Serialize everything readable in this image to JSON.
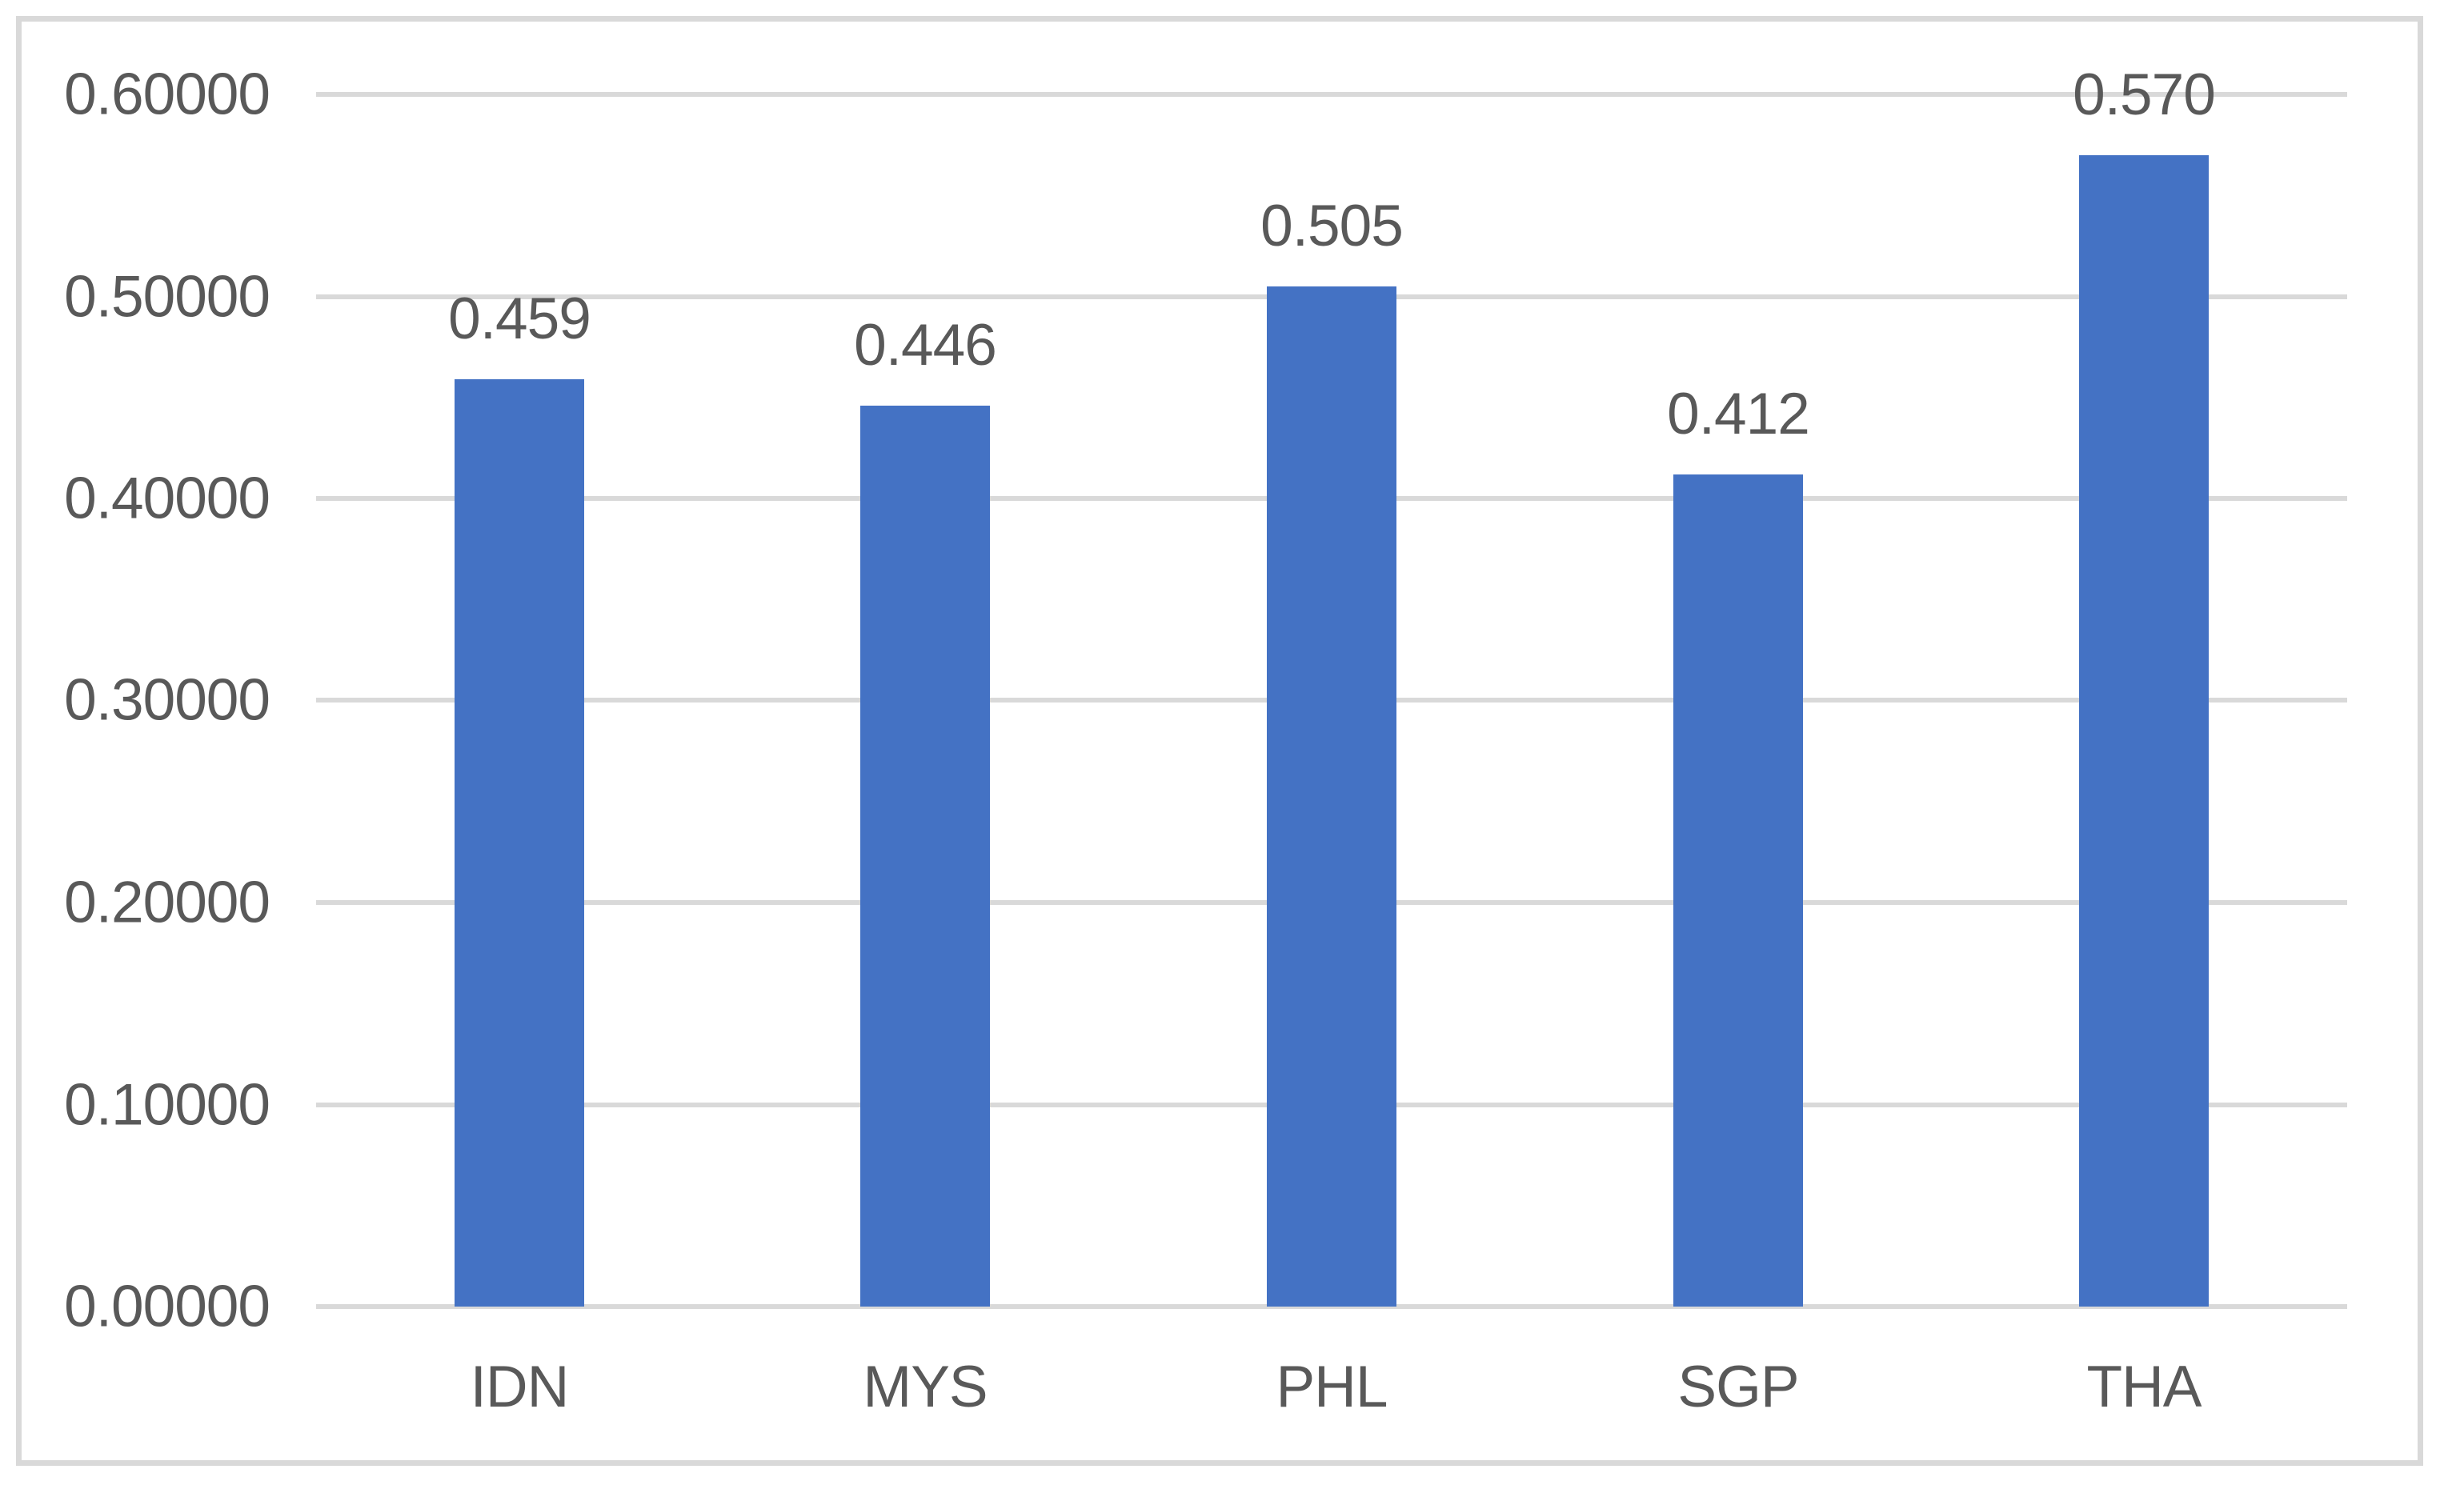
{
  "chart_data": {
    "type": "bar",
    "categories": [
      "IDN",
      "MYS",
      "PHL",
      "SGP",
      "THA"
    ],
    "values": [
      0.459,
      0.446,
      0.505,
      0.412,
      0.57
    ],
    "value_labels": [
      "0.459",
      "0.446",
      "0.505",
      "0.412",
      "0.570"
    ],
    "title": "",
    "xlabel": "",
    "ylabel": "",
    "ylim": [
      0,
      0.6
    ],
    "y_tick_step": 0.1,
    "y_tick_labels": [
      "0.00000",
      "0.10000",
      "0.20000",
      "0.30000",
      "0.40000",
      "0.50000",
      "0.60000"
    ],
    "grid": true,
    "legend": false,
    "colors": {
      "bar": "#4472C4",
      "gridline": "#D9D9D9",
      "frame_border": "#D9D9D9",
      "axis_text": "#595959",
      "background": "#FFFFFF"
    }
  }
}
